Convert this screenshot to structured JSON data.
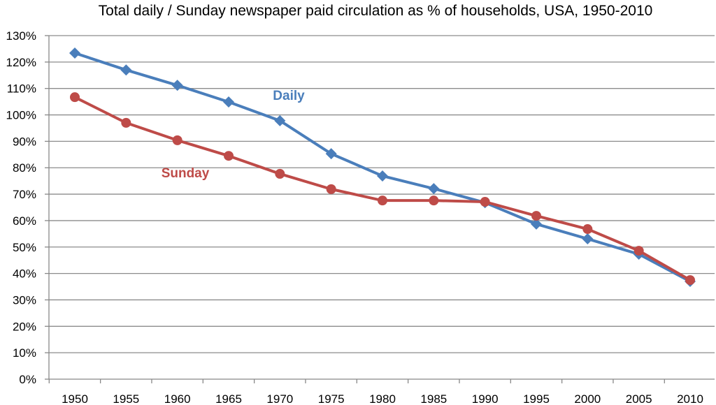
{
  "chart_data": {
    "type": "line",
    "title": "Total daily / Sunday newspaper paid circulation as % of households, USA, 1950-2010",
    "xlabel": "",
    "ylabel": "",
    "x": [
      1950,
      1955,
      1960,
      1965,
      1970,
      1975,
      1980,
      1985,
      1990,
      1995,
      2000,
      2005,
      2010
    ],
    "ylim": [
      0,
      130
    ],
    "yticks": [
      "0%",
      "10%",
      "20%",
      "30%",
      "40%",
      "50%",
      "60%",
      "70%",
      "80%",
      "90%",
      "100%",
      "110%",
      "120%",
      "130%"
    ],
    "grid": true,
    "series": [
      {
        "name": "Daily",
        "color": "#4a7ebb",
        "marker": "diamond",
        "values": [
          123.4,
          117.0,
          111.2,
          104.9,
          97.8,
          85.3,
          76.9,
          72.1,
          66.8,
          58.7,
          53.1,
          47.3,
          37.0
        ]
      },
      {
        "name": "Sunday",
        "color": "#be4b48",
        "marker": "circle",
        "values": [
          106.7,
          97.0,
          90.4,
          84.5,
          77.7,
          71.9,
          67.6,
          67.6,
          67.1,
          61.8,
          56.8,
          48.6,
          37.5
        ]
      }
    ]
  }
}
